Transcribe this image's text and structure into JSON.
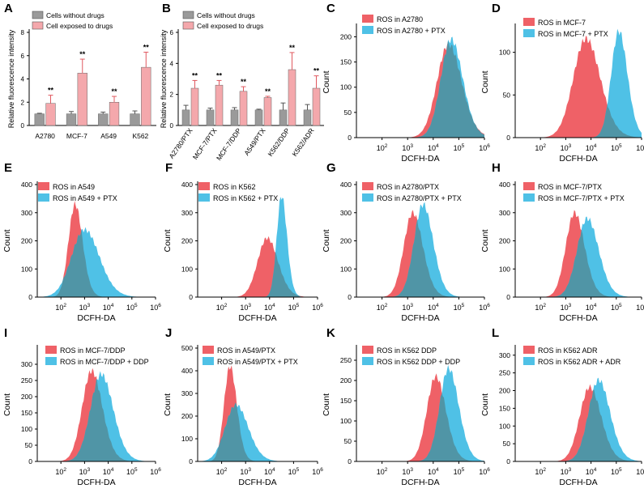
{
  "colors": {
    "red": "#ef6167",
    "blue": "#4fc1e6",
    "gray": "#9a9a9a",
    "bar_red": "#f4a8ac",
    "overlap": "#5095a6"
  },
  "chart_data": [
    {
      "panel": "A",
      "type": "bar",
      "ylabel": "Relative fluorescence intensity",
      "ylim": [
        0,
        8
      ],
      "yticks": [
        "0",
        "2",
        "4",
        "6",
        "8"
      ],
      "categories": [
        "A2780",
        "MCF-7",
        "A549",
        "K562"
      ],
      "series": [
        {
          "name": "Cells without drugs",
          "values": [
            1.0,
            1.0,
            1.0,
            1.0
          ],
          "errors": [
            0.05,
            0.2,
            0.15,
            0.25
          ]
        },
        {
          "name": "Cell exposed to drugs",
          "values": [
            1.9,
            4.5,
            2.0,
            5.0
          ],
          "errors": [
            0.7,
            1.2,
            0.5,
            1.3
          ]
        }
      ],
      "significance": [
        "**",
        "**",
        "**",
        "**"
      ]
    },
    {
      "panel": "B",
      "type": "bar",
      "ylabel": "Relative fluorescence intensity",
      "ylim": [
        0,
        6
      ],
      "yticks": [
        "0",
        "2",
        "4",
        "6"
      ],
      "categories": [
        "A2780/PTX",
        "MCF-7/PTX",
        "MCF-7/DDP",
        "A549/PTX",
        "K562/DDP",
        "K562/ADR"
      ],
      "series": [
        {
          "name": "Cells without drugs",
          "values": [
            1.0,
            1.0,
            1.0,
            1.0,
            1.0,
            1.0
          ],
          "errors": [
            0.3,
            0.12,
            0.15,
            0.05,
            0.45,
            0.35
          ]
        },
        {
          "name": "Cell exposed to drugs",
          "values": [
            2.4,
            2.6,
            2.2,
            1.8,
            3.6,
            2.4
          ],
          "errors": [
            0.5,
            0.3,
            0.3,
            0.08,
            1.1,
            0.8
          ]
        }
      ],
      "significance": [
        "**",
        "**",
        "**",
        "**",
        "**",
        "**"
      ]
    },
    {
      "panel": "C",
      "type": "area",
      "xlabel": "DCFH-DA",
      "ylabel": "Count",
      "xscale": "log",
      "xlim": [
        10,
        1000000
      ],
      "ylim": [
        0,
        220
      ],
      "yticks": [
        "0",
        "50",
        "100",
        "150",
        "200"
      ],
      "legend": [
        "ROS in A2780",
        "ROS in A2780 + PTX"
      ],
      "peaks": [
        {
          "center_log10": 4.6,
          "sigma": 0.45,
          "height": 185
        },
        {
          "center_log10": 4.7,
          "sigma": 0.4,
          "height": 195
        }
      ]
    },
    {
      "panel": "D",
      "type": "area",
      "xlabel": "DCFH-DA",
      "ylabel": "Count",
      "xscale": "log",
      "xlim": [
        10,
        1000000
      ],
      "ylim": [
        0,
        130
      ],
      "yticks": [
        "0",
        "50",
        "100"
      ],
      "legend": [
        "ROS in MCF-7",
        "ROS in MCF-7 + PTX"
      ],
      "peaks": [
        {
          "center_log10": 3.8,
          "sigma": 0.5,
          "height": 116
        },
        {
          "center_log10": 5.1,
          "sigma": 0.3,
          "height": 125
        }
      ]
    },
    {
      "panel": "E",
      "type": "area",
      "xlabel": "DCFH-DA",
      "ylabel": "Count",
      "xscale": "log",
      "xlim": [
        10,
        1000000
      ],
      "ylim": [
        0,
        400
      ],
      "yticks": [
        "0",
        "100",
        "200",
        "300",
        "400"
      ],
      "legend": [
        "ROS in A549",
        "ROS in A549 + PTX"
      ],
      "peaks": [
        {
          "center_log10": 2.6,
          "sigma": 0.28,
          "height": 330
        },
        {
          "center_log10": 3.0,
          "sigma": 0.55,
          "height": 240
        }
      ]
    },
    {
      "panel": "F",
      "type": "area",
      "xlabel": "DCFH-DA",
      "ylabel": "Count",
      "xscale": "log",
      "xlim": [
        10,
        1000000
      ],
      "ylim": [
        0,
        400
      ],
      "yticks": [
        "0",
        "100",
        "200",
        "300",
        "400"
      ],
      "legend": [
        "ROS in K562",
        "ROS in K562 + PTX"
      ],
      "peaks": [
        {
          "center_log10": 3.9,
          "sigma": 0.4,
          "height": 210
        },
        {
          "center_log10": 4.5,
          "sigma": 0.2,
          "height": 360
        }
      ]
    },
    {
      "panel": "G",
      "type": "area",
      "xlabel": "DCFH-DA",
      "ylabel": "Count",
      "xscale": "log",
      "xlim": [
        10,
        1000000
      ],
      "ylim": [
        0,
        400
      ],
      "yticks": [
        "0",
        "100",
        "200",
        "300",
        "400"
      ],
      "legend": [
        "ROS in A2780/PTX",
        "ROS in A2780/PTX + PTX"
      ],
      "peaks": [
        {
          "center_log10": 3.2,
          "sigma": 0.35,
          "height": 300
        },
        {
          "center_log10": 3.6,
          "sigma": 0.35,
          "height": 330
        }
      ]
    },
    {
      "panel": "H",
      "type": "area",
      "xlabel": "DCFH-DA",
      "ylabel": "Count",
      "xscale": "log",
      "xlim": [
        10,
        1000000
      ],
      "ylim": [
        0,
        400
      ],
      "yticks": [
        "0",
        "100",
        "200",
        "300",
        "400"
      ],
      "legend": [
        "ROS in MCF-7/PTX",
        "ROS in MCF-7/PTX + PTX"
      ],
      "peaks": [
        {
          "center_log10": 3.35,
          "sigma": 0.35,
          "height": 300
        },
        {
          "center_log10": 3.85,
          "sigma": 0.4,
          "height": 280
        }
      ]
    },
    {
      "panel": "I",
      "type": "area",
      "xlabel": "DCFH-DA",
      "ylabel": "Count",
      "xscale": "log",
      "xlim": [
        10,
        1000000
      ],
      "ylim": [
        0,
        350
      ],
      "yticks": [
        "0",
        "50",
        "100",
        "150",
        "200",
        "250",
        "300"
      ],
      "legend": [
        "ROS in MCF-7/DDP",
        "ROS in MCF-7/DDP + DDP"
      ],
      "peaks": [
        {
          "center_log10": 3.3,
          "sigma": 0.4,
          "height": 280
        },
        {
          "center_log10": 3.7,
          "sigma": 0.45,
          "height": 270
        }
      ]
    },
    {
      "panel": "J",
      "type": "area",
      "xlabel": "DCFH-DA",
      "ylabel": "Count",
      "xscale": "log",
      "xlim": [
        10,
        1000000
      ],
      "ylim": [
        0,
        500
      ],
      "yticks": [
        "0",
        "100",
        "200",
        "300",
        "400",
        "500"
      ],
      "legend": [
        "ROS in A549/PTX",
        "ROS in A549/PTX + PTX"
      ],
      "peaks": [
        {
          "center_log10": 2.35,
          "sigma": 0.25,
          "height": 420
        },
        {
          "center_log10": 2.6,
          "sigma": 0.45,
          "height": 250
        }
      ]
    },
    {
      "panel": "K",
      "type": "area",
      "xlabel": "DCFH-DA",
      "ylabel": "Count",
      "xscale": "log",
      "xlim": [
        10,
        1000000
      ],
      "ylim": [
        0,
        280
      ],
      "yticks": [
        "0",
        "50",
        "100",
        "150",
        "200",
        "250"
      ],
      "legend": [
        "ROS in K562 DDP",
        "ROS in K562 DDP + DDP"
      ],
      "peaks": [
        {
          "center_log10": 4.1,
          "sigma": 0.35,
          "height": 210
        },
        {
          "center_log10": 4.6,
          "sigma": 0.35,
          "height": 230
        }
      ]
    },
    {
      "panel": "L",
      "type": "area",
      "xlabel": "DCFH-DA",
      "ylabel": "Count",
      "xscale": "log",
      "xlim": [
        10,
        1000000
      ],
      "ylim": [
        0,
        320
      ],
      "yticks": [
        "0",
        "50",
        "100",
        "150",
        "200",
        "250",
        "300"
      ],
      "legend": [
        "ROS in K562 ADR",
        "ROS in K562 ADR + ADR"
      ],
      "peaks": [
        {
          "center_log10": 3.95,
          "sigma": 0.4,
          "height": 210
        },
        {
          "center_log10": 4.3,
          "sigma": 0.4,
          "height": 230
        }
      ]
    }
  ]
}
